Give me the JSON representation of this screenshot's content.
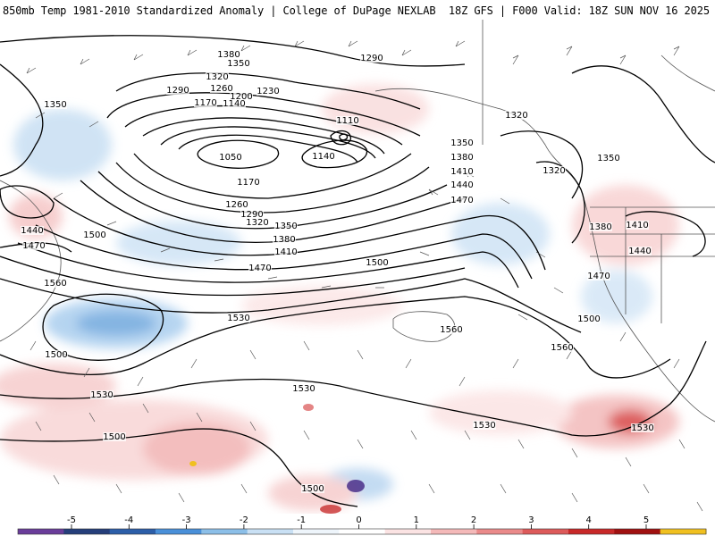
{
  "header": {
    "title_left": "850mb Temp 1981-2010 Standardized Anomaly | College of DuPage NEXLAB",
    "title_right": "18Z GFS | F000 Valid: 18Z SUN NOV 16 2025"
  },
  "contour_labels": [
    "1380",
    "1350",
    "1290",
    "1320",
    "1290",
    "1260",
    "1230",
    "1200",
    "1170",
    "1140",
    "1110",
    "1350",
    "1320",
    "1050",
    "1140",
    "1170",
    "1350",
    "1380",
    "1410",
    "1440",
    "1470",
    "1260",
    "1290",
    "1320",
    "1350",
    "1380",
    "1410",
    "1470",
    "1500",
    "1380",
    "1410",
    "1440",
    "1470",
    "1440",
    "1470",
    "1500",
    "1320",
    "1350",
    "1500",
    "1560",
    "1530",
    "1560",
    "1500",
    "1560",
    "1530",
    "1530",
    "1530",
    "1530",
    "1500",
    "1500"
  ],
  "colorbar": {
    "ticks": [
      "-5",
      "-4",
      "-3",
      "-2",
      "-1",
      "0",
      "1",
      "2",
      "3",
      "4",
      "5"
    ],
    "colors": [
      "#6a3d9a",
      "#253e7a",
      "#2c5ea8",
      "#4a90d9",
      "#8cbfe8",
      "#c9e0f4",
      "#eef5fb",
      "#ffffff",
      "#fbe3e3",
      "#f4b9b9",
      "#ea8a8a",
      "#dd5a5a",
      "#c82828",
      "#a01010",
      "#f0c020"
    ]
  }
}
